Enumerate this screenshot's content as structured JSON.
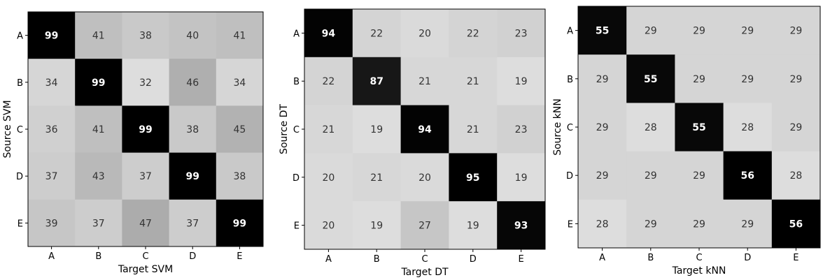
{
  "chart_data": [
    {
      "type": "heatmap",
      "xlabel": "Target SVM",
      "ylabel": "Source SVM",
      "categories": [
        "A",
        "B",
        "C",
        "D",
        "E"
      ],
      "values": [
        [
          99,
          41,
          38,
          40,
          41
        ],
        [
          34,
          99,
          32,
          46,
          34
        ],
        [
          36,
          41,
          99,
          38,
          45
        ],
        [
          37,
          43,
          37,
          99,
          38
        ],
        [
          39,
          37,
          47,
          37,
          99
        ]
      ],
      "colormap": "gray_r",
      "grid": false
    },
    {
      "type": "heatmap",
      "xlabel": "Target DT",
      "ylabel": "Source DT",
      "categories": [
        "A",
        "B",
        "C",
        "D",
        "E"
      ],
      "values": [
        [
          94,
          22,
          20,
          22,
          23
        ],
        [
          22,
          87,
          21,
          21,
          19
        ],
        [
          21,
          19,
          94,
          21,
          23
        ],
        [
          20,
          21,
          20,
          95,
          19
        ],
        [
          20,
          19,
          27,
          19,
          93
        ]
      ],
      "colormap": "gray_r",
      "grid": false
    },
    {
      "type": "heatmap",
      "xlabel": "Target kNN",
      "ylabel": "Source kNN",
      "categories": [
        "A",
        "B",
        "C",
        "D",
        "E"
      ],
      "values": [
        [
          55,
          29,
          29,
          29,
          29
        ],
        [
          29,
          55,
          29,
          29,
          29
        ],
        [
          29,
          28,
          55,
          28,
          29
        ],
        [
          29,
          29,
          29,
          56,
          28
        ],
        [
          28,
          29,
          29,
          29,
          56
        ]
      ],
      "colormap": "gray_r",
      "grid": false
    }
  ]
}
